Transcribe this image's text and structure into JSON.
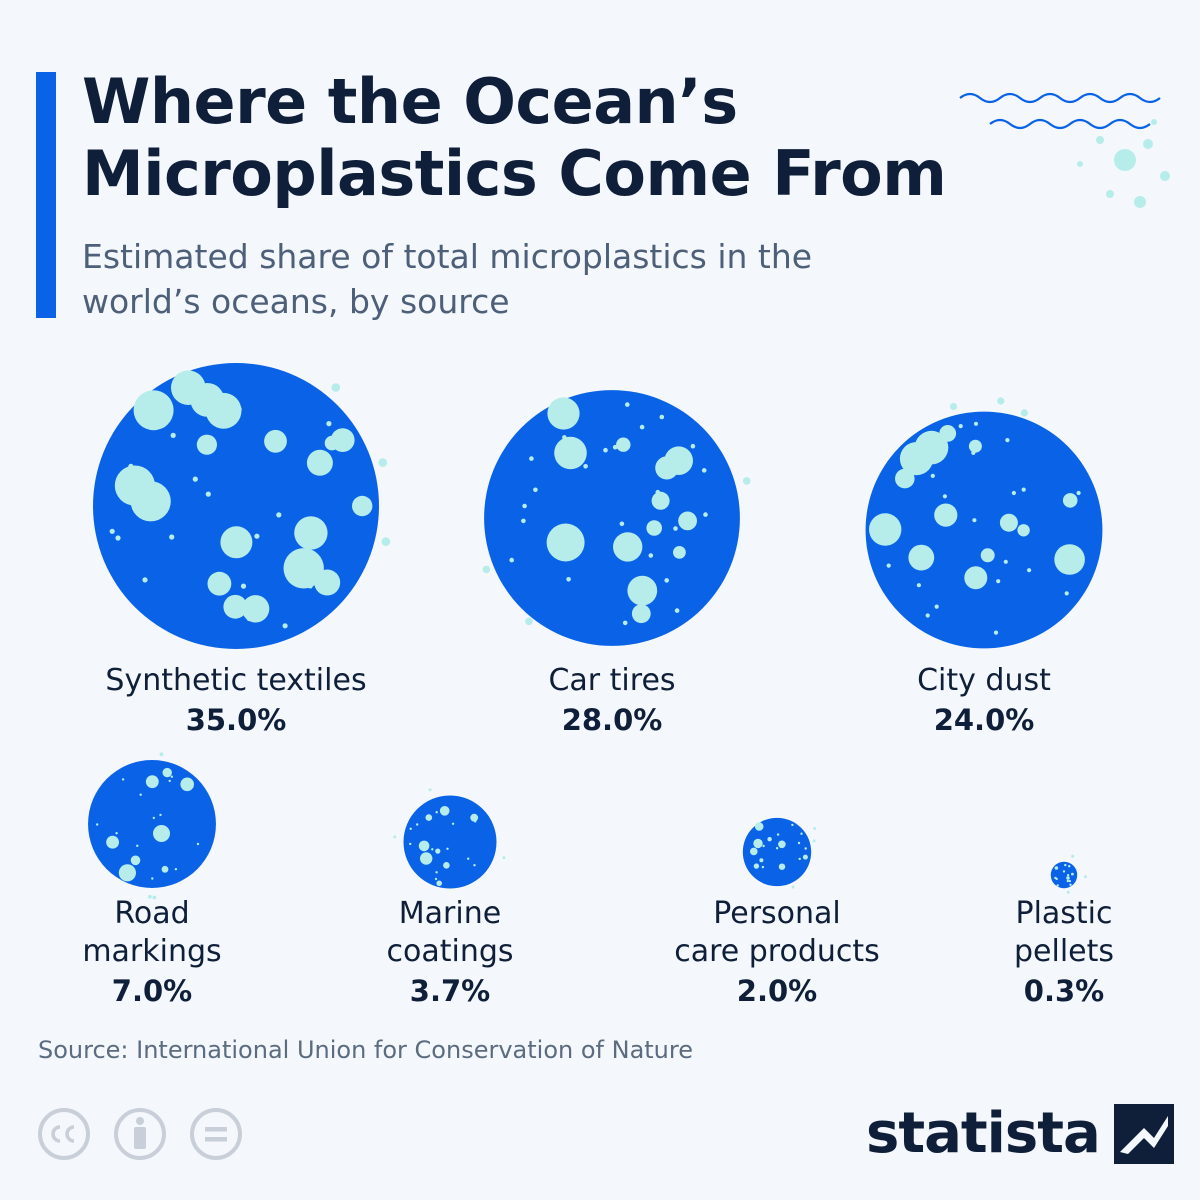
{
  "title": "Where the Ocean’s Microplastics Come From",
  "subtitle": "Estimated share of total microplastics in the world’s oceans, by source",
  "source": "Source: International Union for Conservation of Nature",
  "logo_text": "statista",
  "colors": {
    "bubble": "#0a63e6",
    "speck": "#b6ece9",
    "title": "#0f1f3a",
    "subtitle": "#4d5f79"
  },
  "icons": [
    "cc-icon",
    "attribution-icon",
    "no-derivatives-icon"
  ],
  "chart_data": {
    "type": "bubble",
    "title": "Where the Ocean’s Microplastics Come From",
    "subtitle": "Estimated share of total microplastics in the world’s oceans, by source",
    "categories": [
      "Synthetic textiles",
      "Car tires",
      "City dust",
      "Road markings",
      "Marine coatings",
      "Personal care products",
      "Plastic pellets"
    ],
    "values": [
      35.0,
      28.0,
      24.0,
      7.0,
      3.7,
      2.0,
      0.3
    ],
    "labels": [
      "Synthetic textiles",
      "Car tires",
      "City dust",
      "Road\nmarkings",
      "Marine\ncoatings",
      "Personal\ncare products",
      "Plastic\npellets"
    ],
    "value_labels": [
      "35.0%",
      "28.0%",
      "24.0%",
      "7.0%",
      "3.7%",
      "2.0%",
      "0.3%"
    ],
    "unit": "%"
  }
}
